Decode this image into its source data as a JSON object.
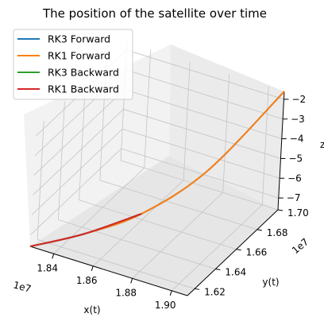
{
  "chart_data": {
    "type": "line",
    "projection": "3d",
    "title": "The position of the satellite over time",
    "xlabel": "x(t)",
    "ylabel": "y(t)",
    "zlabel": "z",
    "x_scale_label": "1e7",
    "y_scale_label": "1e7",
    "x_ticks": [
      "1.84",
      "1.86",
      "1.88",
      "1.90"
    ],
    "y_ticks": [
      "1.62",
      "1.64",
      "1.66",
      "1.68",
      "1.70"
    ],
    "z_ticks": [
      "−7",
      "−6",
      "−5",
      "−4",
      "−3",
      "−2"
    ],
    "grid": true,
    "legend_position": "upper-left",
    "series": [
      {
        "name": "RK3 Forward",
        "color": "#1f77b4",
        "x": [
          1.828,
          1.848,
          1.868,
          1.888,
          1.908
        ],
        "y": [
          1.613,
          1.626,
          1.643,
          1.667,
          1.7
        ],
        "z": [
          -7.6,
          -7.0,
          -6.2,
          -4.6,
          -1.6
        ]
      },
      {
        "name": "RK1 Forward",
        "color": "#ff7f0e",
        "x": [
          1.828,
          1.848,
          1.868,
          1.888,
          1.908
        ],
        "y": [
          1.613,
          1.626,
          1.643,
          1.667,
          1.7
        ],
        "z": [
          -7.6,
          -7.0,
          -6.2,
          -4.6,
          -1.6
        ]
      },
      {
        "name": "RK3 Backward",
        "color": "#2ca02c",
        "x": [
          1.828,
          1.848,
          1.868
        ],
        "y": [
          1.613,
          1.626,
          1.643
        ],
        "z": [
          -7.6,
          -7.0,
          -6.2
        ]
      },
      {
        "name": "RK1 Backward",
        "color": "#d62728",
        "x": [
          1.828,
          1.848,
          1.868
        ],
        "y": [
          1.613,
          1.626,
          1.643
        ],
        "z": [
          -7.6,
          -7.0,
          -6.2
        ]
      }
    ]
  }
}
